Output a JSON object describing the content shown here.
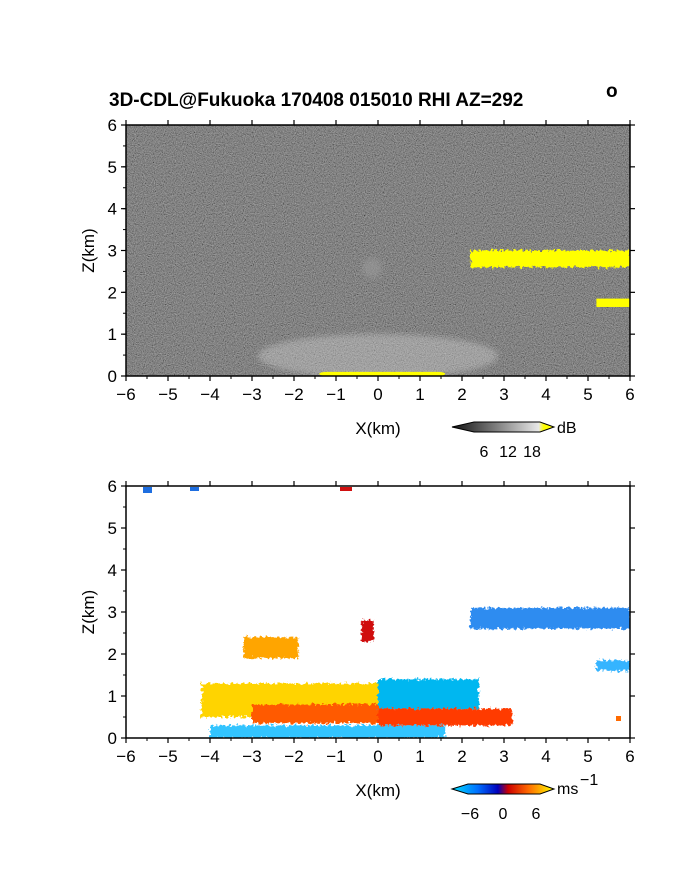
{
  "title": "3D-CDL@Fukuoka 170408 015010 RHI AZ=292",
  "title_suffix": "o",
  "chart_data": [
    {
      "type": "heatmap",
      "quantity": "intensity",
      "colormap": "grayscale",
      "xlabel": "X(km)",
      "ylabel": "Z(km)",
      "xlim": [
        -6,
        6
      ],
      "ylim": [
        0,
        6
      ],
      "x_ticks": [
        -6,
        -5,
        -4,
        -3,
        -2,
        -1,
        0,
        1,
        2,
        3,
        4,
        5,
        6
      ],
      "y_ticks": [
        0,
        1,
        2,
        3,
        4,
        5,
        6
      ],
      "grid": false,
      "colorbar": {
        "unit": "dB",
        "ticks": [
          6,
          12,
          18
        ],
        "colors": [
          "#1a1a1a",
          "#4d4d4d",
          "#808080",
          "#b3b3b3",
          "#e6e6e6",
          "#ffff00"
        ]
      },
      "features": [
        {
          "name": "cloud layer",
          "x": [
            2.2,
            6.0
          ],
          "z": [
            2.6,
            3.0
          ],
          "color": "#ffff00"
        },
        {
          "name": "cloud fragment",
          "x": [
            5.2,
            6.0
          ],
          "z": [
            1.65,
            1.85
          ],
          "color": "#ffff00"
        },
        {
          "name": "surface return",
          "x": [
            -1.4,
            1.6
          ],
          "z": [
            0.0,
            0.1
          ],
          "color": "#ffff00"
        }
      ]
    },
    {
      "type": "heatmap",
      "quantity": "radial velocity",
      "colormap": "diverging blue-red-yellow",
      "xlabel": "X(km)",
      "ylabel": "Z(km)",
      "xlim": [
        -6,
        6
      ],
      "ylim": [
        0,
        6
      ],
      "x_ticks": [
        -6,
        -5,
        -4,
        -3,
        -2,
        -1,
        0,
        1,
        2,
        3,
        4,
        5,
        6
      ],
      "y_ticks": [
        0,
        1,
        2,
        3,
        4,
        5,
        6
      ],
      "grid": false,
      "colorbar": {
        "unit": "ms",
        "unit_exponent": "−1",
        "ticks": [
          "−6",
          "0",
          "6"
        ],
        "colors": [
          "#00d2ff",
          "#0066ff",
          "#0000cc",
          "#cc0000",
          "#ff4400",
          "#ff9900",
          "#ffff00"
        ]
      },
      "features": [
        {
          "name": "upper cloud layer",
          "x": [
            2.2,
            6.0
          ],
          "z": [
            2.6,
            3.1
          ],
          "color": "#2f8cf0"
        },
        {
          "name": "outflow left",
          "x": [
            -4.2,
            0.0
          ],
          "z": [
            0.5,
            1.3
          ],
          "color": "#ffd400"
        },
        {
          "name": "outflow left lower",
          "x": [
            -3.0,
            0.0
          ],
          "z": [
            0.35,
            0.8
          ],
          "color": "#ff5a00"
        },
        {
          "name": "inflow right",
          "x": [
            0.0,
            2.4
          ],
          "z": [
            0.7,
            1.4
          ],
          "color": "#00b7f0"
        },
        {
          "name": "outflow right lower",
          "x": [
            0.0,
            3.2
          ],
          "z": [
            0.3,
            0.7
          ],
          "color": "#ff3a00"
        },
        {
          "name": "surface flow",
          "x": [
            -4.0,
            1.6
          ],
          "z": [
            0.0,
            0.3
          ],
          "color": "#33c4ff"
        },
        {
          "name": "aloft patch",
          "x": [
            -3.2,
            -1.9
          ],
          "z": [
            1.9,
            2.4
          ],
          "color": "#ffa500"
        },
        {
          "name": "convergence core",
          "x": [
            -0.4,
            -0.1
          ],
          "z": [
            2.3,
            2.8
          ],
          "color": "#d01010"
        },
        {
          "name": "cloud fragment",
          "x": [
            5.2,
            6.0
          ],
          "z": [
            1.6,
            1.85
          ],
          "color": "#36b4ff"
        }
      ]
    }
  ]
}
